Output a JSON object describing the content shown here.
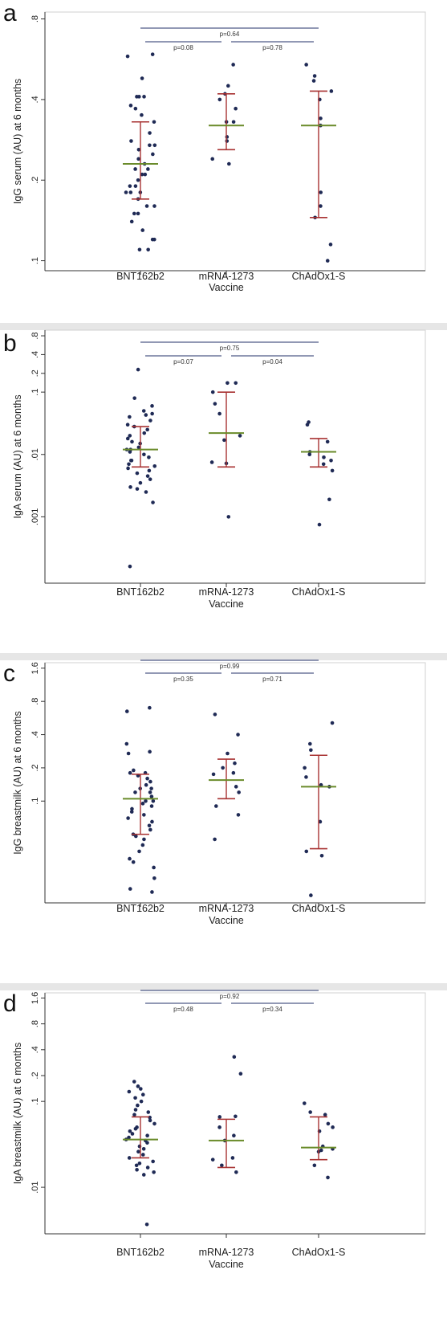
{
  "figure": {
    "colors": {
      "point": "#1f2a55",
      "mean": "#6a8b2a",
      "errorbar": "#a83232",
      "bracket": "#4f5a86",
      "axis": "#333333",
      "separator": "#e6e6e6"
    }
  },
  "chart_data": [
    {
      "panel": "a",
      "type": "scatter",
      "scale": "log",
      "ylabel": "IgG serum (AU) at 6 months",
      "xlabel": "Vaccine",
      "categories": [
        "BNT162b2",
        "mRNA-1273",
        "ChAdOx1-S"
      ],
      "yticks": [
        {
          "value": 0.1,
          "label": ".1"
        },
        {
          "value": 0.2,
          "label": ".2"
        },
        {
          "value": 0.4,
          "label": ".4"
        },
        {
          "value": 0.8,
          "label": ".8"
        }
      ],
      "ylim": [
        0.095,
        0.82
      ],
      "groups": [
        {
          "name": "BNT162b2",
          "mean": 0.23,
          "ci": [
            0.17,
            0.33
          ],
          "points": [
            0.59,
            0.58,
            0.48,
            0.41,
            0.41,
            0.41,
            0.38,
            0.37,
            0.35,
            0.33,
            0.3,
            0.28,
            0.27,
            0.27,
            0.26,
            0.25,
            0.24,
            0.23,
            0.22,
            0.22,
            0.21,
            0.21,
            0.2,
            0.19,
            0.19,
            0.18,
            0.18,
            0.18,
            0.17,
            0.16,
            0.16,
            0.15,
            0.15,
            0.14,
            0.13,
            0.12,
            0.12,
            0.11,
            0.11
          ]
        },
        {
          "name": "mRNA-1273",
          "mean": 0.32,
          "ci": [
            0.26,
            0.42
          ],
          "points": [
            0.54,
            0.45,
            0.42,
            0.4,
            0.37,
            0.33,
            0.33,
            0.29,
            0.28,
            0.24,
            0.23
          ]
        },
        {
          "name": "ChAdOx1-S",
          "mean": 0.32,
          "ci": [
            0.145,
            0.43
          ],
          "points": [
            0.54,
            0.49,
            0.47,
            0.43,
            0.4,
            0.34,
            0.32,
            0.18,
            0.16,
            0.145,
            0.115,
            0.1
          ]
        }
      ],
      "comparisons": [
        {
          "from": "BNT162b2",
          "to": "ChAdOx1-S",
          "label": "p=0.64"
        },
        {
          "from": "BNT162b2",
          "to": "mRNA-1273",
          "label": "p=0.08"
        },
        {
          "from": "mRNA-1273",
          "to": "ChAdOx1-S",
          "label": "p=0.78"
        }
      ]
    },
    {
      "panel": "b",
      "type": "scatter",
      "scale": "log",
      "ylabel": "IgA serum (AU) at 6 months",
      "xlabel": "Vaccine",
      "categories": [
        "BNT162b2",
        "mRNA-1273",
        "ChAdOx1-S"
      ],
      "yticks": [
        {
          "value": 0.001,
          "label": ".001"
        },
        {
          "value": 0.01,
          "label": ".01"
        },
        {
          "value": 0.1,
          "label": ".1"
        },
        {
          "value": 0.2,
          "label": ".2"
        },
        {
          "value": 0.4,
          "label": ".4"
        },
        {
          "value": 0.8,
          "label": ".8"
        }
      ],
      "ylim": [
        0.0001,
        0.85
      ],
      "groups": [
        {
          "name": "BNT162b2",
          "mean": 0.012,
          "ci": [
            0.0063,
            0.028
          ],
          "points": [
            0.23,
            0.08,
            0.06,
            0.05,
            0.045,
            0.043,
            0.04,
            0.035,
            0.03,
            0.028,
            0.025,
            0.022,
            0.02,
            0.018,
            0.016,
            0.015,
            0.013,
            0.012,
            0.012,
            0.011,
            0.01,
            0.009,
            0.008,
            0.008,
            0.007,
            0.0065,
            0.006,
            0.0055,
            0.005,
            0.0045,
            0.004,
            0.0035,
            0.003,
            0.0028,
            0.0025,
            0.0017,
            0.00016
          ]
        },
        {
          "name": "mRNA-1273",
          "mean": 0.022,
          "ci": [
            0.0063,
            0.1
          ],
          "points": [
            0.14,
            0.14,
            0.1,
            0.065,
            0.045,
            0.02,
            0.017,
            0.0075,
            0.0072,
            0.001
          ]
        },
        {
          "name": "ChAdOx1-S",
          "mean": 0.011,
          "ci": [
            0.0063,
            0.018
          ],
          "points": [
            0.033,
            0.03,
            0.016,
            0.011,
            0.01,
            0.009,
            0.008,
            0.007,
            0.0055,
            0.0019,
            0.00075
          ]
        }
      ],
      "comparisons": [
        {
          "from": "BNT162b2",
          "to": "ChAdOx1-S",
          "label": "p=0.75"
        },
        {
          "from": "BNT162b2",
          "to": "mRNA-1273",
          "label": "p=0.07"
        },
        {
          "from": "mRNA-1273",
          "to": "ChAdOx1-S",
          "label": "p=0.04"
        }
      ]
    },
    {
      "panel": "c",
      "type": "scatter",
      "scale": "log",
      "ylabel": "IgG breastmilk (AU) at 6 months",
      "xlabel": "Vaccine",
      "categories": [
        "BNT162b2",
        "mRNA-1273",
        "ChAdOx1-S"
      ],
      "yticks": [
        {
          "value": 0.1,
          "label": ".1"
        },
        {
          "value": 0.2,
          "label": ".2"
        },
        {
          "value": 0.4,
          "label": ".4"
        },
        {
          "value": 0.8,
          "label": ".8"
        },
        {
          "value": 1.6,
          "label": "1.6"
        }
      ],
      "ylim": [
        0.013,
        1.65
      ],
      "groups": [
        {
          "name": "BNT162b2",
          "mean": 0.105,
          "ci": [
            0.05,
            0.175
          ],
          "points": [
            0.7,
            0.65,
            0.33,
            0.28,
            0.27,
            0.19,
            0.18,
            0.18,
            0.17,
            0.16,
            0.15,
            0.14,
            0.13,
            0.13,
            0.12,
            0.12,
            0.11,
            0.1,
            0.1,
            0.095,
            0.09,
            0.085,
            0.08,
            0.075,
            0.07,
            0.065,
            0.06,
            0.055,
            0.05,
            0.048,
            0.045,
            0.04,
            0.035,
            0.03,
            0.028,
            0.025,
            0.02,
            0.016,
            0.015
          ]
        },
        {
          "name": "mRNA-1273",
          "mean": 0.155,
          "ci": [
            0.105,
            0.24
          ],
          "points": [
            0.61,
            0.4,
            0.27,
            0.22,
            0.2,
            0.18,
            0.175,
            0.135,
            0.12,
            0.09,
            0.075,
            0.045
          ]
        },
        {
          "name": "ChAdOx1-S",
          "mean": 0.135,
          "ci": [
            0.037,
            0.26
          ],
          "points": [
            0.51,
            0.33,
            0.29,
            0.2,
            0.165,
            0.14,
            0.135,
            0.065,
            0.035,
            0.032,
            0.014
          ]
        }
      ],
      "comparisons": [
        {
          "from": "BNT162b2",
          "to": "ChAdOx1-S",
          "label": "p=0.99"
        },
        {
          "from": "BNT162b2",
          "to": "mRNA-1273",
          "label": "p=0.35"
        },
        {
          "from": "mRNA-1273",
          "to": "ChAdOx1-S",
          "label": "p=0.71"
        }
      ]
    },
    {
      "panel": "d",
      "type": "scatter",
      "scale": "log",
      "ylabel": "IgA breastmilk (AU) at 6 months",
      "xlabel": "Vaccine",
      "categories": [
        "BNT162b2",
        "mRNA-1273",
        "ChAdOx1-S"
      ],
      "yticks": [
        {
          "value": 0.01,
          "label": ".01"
        },
        {
          "value": 0.1,
          "label": ".1"
        },
        {
          "value": 0.2,
          "label": ".2"
        },
        {
          "value": 0.4,
          "label": ".4"
        },
        {
          "value": 0.8,
          "label": ".8"
        },
        {
          "value": 1.6,
          "label": "1.6"
        }
      ],
      "ylim": [
        0.0032,
        1.65
      ],
      "groups": [
        {
          "name": "BNT162b2",
          "mean": 0.036,
          "ci": [
            0.022,
            0.066
          ],
          "points": [
            0.17,
            0.15,
            0.14,
            0.13,
            0.12,
            0.11,
            0.1,
            0.09,
            0.08,
            0.075,
            0.07,
            0.065,
            0.06,
            0.055,
            0.05,
            0.048,
            0.045,
            0.042,
            0.04,
            0.038,
            0.036,
            0.035,
            0.033,
            0.03,
            0.028,
            0.026,
            0.024,
            0.022,
            0.02,
            0.019,
            0.018,
            0.017,
            0.016,
            0.015,
            0.014,
            0.0037
          ]
        },
        {
          "name": "mRNA-1273",
          "mean": 0.035,
          "ci": [
            0.017,
            0.062
          ],
          "points": [
            0.33,
            0.21,
            0.067,
            0.066,
            0.05,
            0.04,
            0.035,
            0.022,
            0.021,
            0.018,
            0.015
          ]
        },
        {
          "name": "ChAdOx1-S",
          "mean": 0.029,
          "ci": [
            0.021,
            0.066
          ],
          "points": [
            0.095,
            0.075,
            0.07,
            0.055,
            0.05,
            0.045,
            0.03,
            0.028,
            0.027,
            0.026,
            0.018,
            0.013
          ]
        }
      ],
      "comparisons": [
        {
          "from": "BNT162b2",
          "to": "ChAdOx1-S",
          "label": "p=0.92"
        },
        {
          "from": "BNT162b2",
          "to": "mRNA-1273",
          "label": "p=0.48"
        },
        {
          "from": "mRNA-1273",
          "to": "ChAdOx1-S",
          "label": "p=0.34"
        }
      ]
    }
  ]
}
